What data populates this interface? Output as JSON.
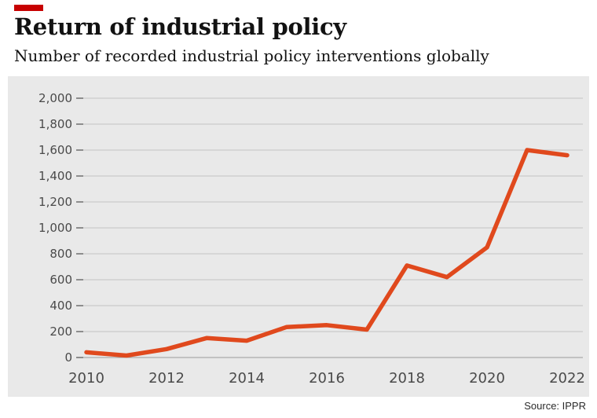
{
  "accent_color": "#c70000",
  "line_color": "#e0491d",
  "panel_color": "#e9e9e9",
  "header": {
    "title": "Return of industrial policy",
    "subtitle": "Number of recorded industrial policy interventions globally"
  },
  "source": "Source: IPPR",
  "chart_data": {
    "type": "line",
    "title": "Return of industrial policy",
    "subtitle": "Number of recorded industrial policy interventions globally",
    "x": [
      2010,
      2011,
      2012,
      2013,
      2014,
      2015,
      2016,
      2017,
      2018,
      2019,
      2020,
      2021,
      2022
    ],
    "values": [
      40,
      15,
      65,
      150,
      130,
      235,
      250,
      215,
      710,
      620,
      850,
      1600,
      1560
    ],
    "xlabel": "",
    "ylabel": "",
    "ylim": [
      0,
      2000
    ],
    "ytick_step": 200,
    "xticks": [
      2010,
      2012,
      2014,
      2016,
      2018,
      2020,
      2022
    ],
    "grid": true,
    "legend": "none",
    "series_name": "Recorded industrial policy interventions globally"
  }
}
